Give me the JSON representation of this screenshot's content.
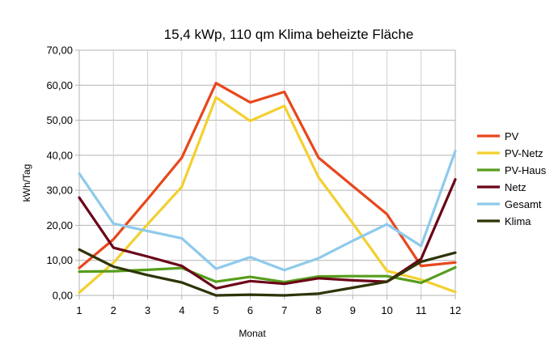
{
  "chart_data": {
    "type": "line",
    "title": "15,4 kWp, 110 qm Klima beheizte Fläche",
    "xlabel": "Monat",
    "ylabel": "kWh/Tag",
    "x": [
      1,
      2,
      3,
      4,
      5,
      6,
      7,
      8,
      9,
      10,
      11,
      12
    ],
    "x_tick_labels": [
      "1",
      "2",
      "3",
      "4",
      "5",
      "6",
      "7",
      "8",
      "9",
      "10",
      "11",
      "12"
    ],
    "ylim": [
      0,
      70
    ],
    "y_ticks": [
      0,
      10,
      20,
      30,
      40,
      50,
      60,
      70
    ],
    "y_tick_labels": [
      "0,00",
      "10,00",
      "20,00",
      "30,00",
      "40,00",
      "50,00",
      "60,00",
      "70,00"
    ],
    "grid": "horizontal",
    "legend_position": "right",
    "series": [
      {
        "name": "PV",
        "color": "#e8471b",
        "values": [
          7.8,
          16.0,
          27.5,
          39.3,
          60.6,
          55.1,
          58.1,
          39.3,
          31.2,
          23.2,
          8.4,
          9.4
        ]
      },
      {
        "name": "PV-Netz",
        "color": "#f3d030",
        "values": [
          0.8,
          9.3,
          20.3,
          31.0,
          56.5,
          49.8,
          54.1,
          33.7,
          20.6,
          7.0,
          4.5,
          1.0
        ]
      },
      {
        "name": "PV-Haus",
        "color": "#579d1c",
        "values": [
          6.8,
          6.9,
          7.3,
          7.8,
          3.9,
          5.3,
          3.8,
          5.4,
          5.5,
          5.5,
          3.6,
          8.0
        ]
      },
      {
        "name": "Netz",
        "color": "#6b0418",
        "values": [
          27.9,
          13.6,
          11.1,
          8.4,
          2.0,
          4.1,
          3.3,
          4.9,
          4.3,
          3.9,
          10.4,
          33.1
        ]
      },
      {
        "name": "Gesamt",
        "color": "#8ecaec",
        "values": [
          34.8,
          20.5,
          18.4,
          16.3,
          7.6,
          10.9,
          7.2,
          10.6,
          15.6,
          20.3,
          14.1,
          41.2
        ]
      },
      {
        "name": "Klima",
        "color": "#2f3307",
        "values": [
          13.1,
          8.2,
          5.8,
          3.7,
          0.0,
          0.2,
          0.0,
          0.5,
          2.2,
          3.9,
          9.6,
          12.2
        ]
      }
    ]
  }
}
